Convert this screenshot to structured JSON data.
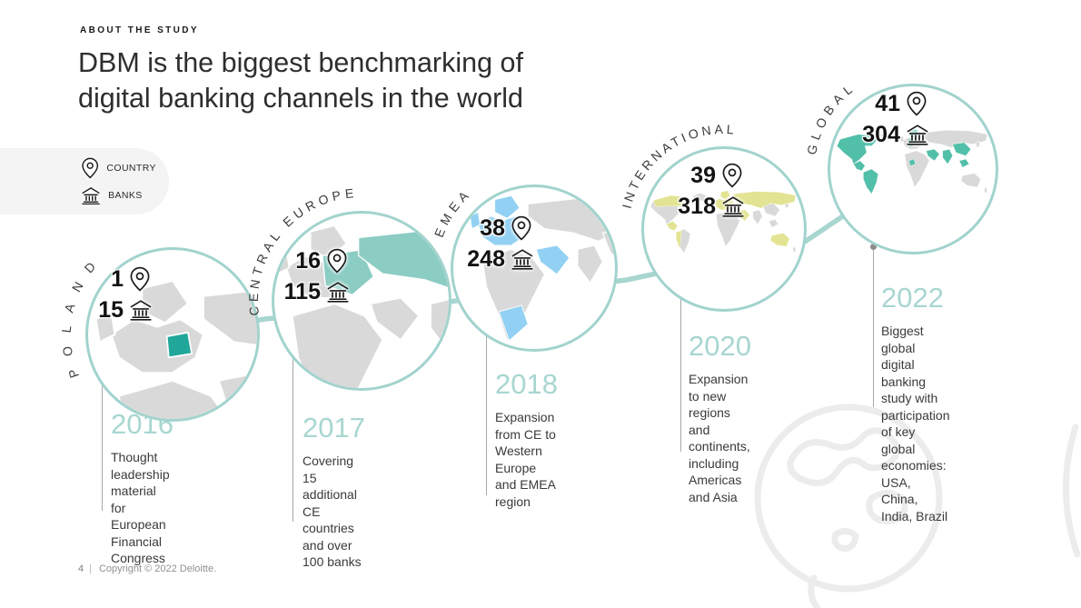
{
  "header": {
    "eyebrow": "ABOUT THE STUDY",
    "title_line1": "DBM is the biggest benchmarking of",
    "title_line2": "digital banking channels in the world"
  },
  "legend": {
    "country_label": "COUNTRY",
    "banks_label": "BANKS"
  },
  "milestones": [
    {
      "region": "POLAND",
      "countries": "1",
      "banks": "15",
      "year": "2016",
      "description": "Thought leadership material for European Financial Congress",
      "map_highlight": "#21A69A"
    },
    {
      "region": "CENTRAL EUROPE",
      "countries": "16",
      "banks": "115",
      "year": "2017",
      "description": "Covering 15 additional CE countries and over 100 banks",
      "map_highlight": "#8BCCC3"
    },
    {
      "region": "EMEA",
      "countries": "38",
      "banks": "248",
      "year": "2018",
      "description": "Expansion from CE to Western Europe and EMEA region",
      "map_highlight": "#92D1F3"
    },
    {
      "region": "INTERNATIONAL",
      "countries": "39",
      "banks": "318",
      "year": "2020",
      "description": "Expansion to new regions and continents, including Americas and Asia",
      "map_highlight": "#E2E493"
    },
    {
      "region": "GLOBAL",
      "countries": "41",
      "banks": "304",
      "year": "2022",
      "description": "Biggest global digital banking study with participation of key global economies: USA, China, India, Brazil",
      "map_highlight": "#52BFA9"
    }
  ],
  "footer": {
    "page_number": "4",
    "separator": "|",
    "copyright": "Copyright © 2022 Deloitte."
  },
  "colors": {
    "timeline": "#A8D6D1",
    "circle_border": "#A2D3CE",
    "year": "#A8D6D1",
    "land": "#D9D9D9"
  }
}
